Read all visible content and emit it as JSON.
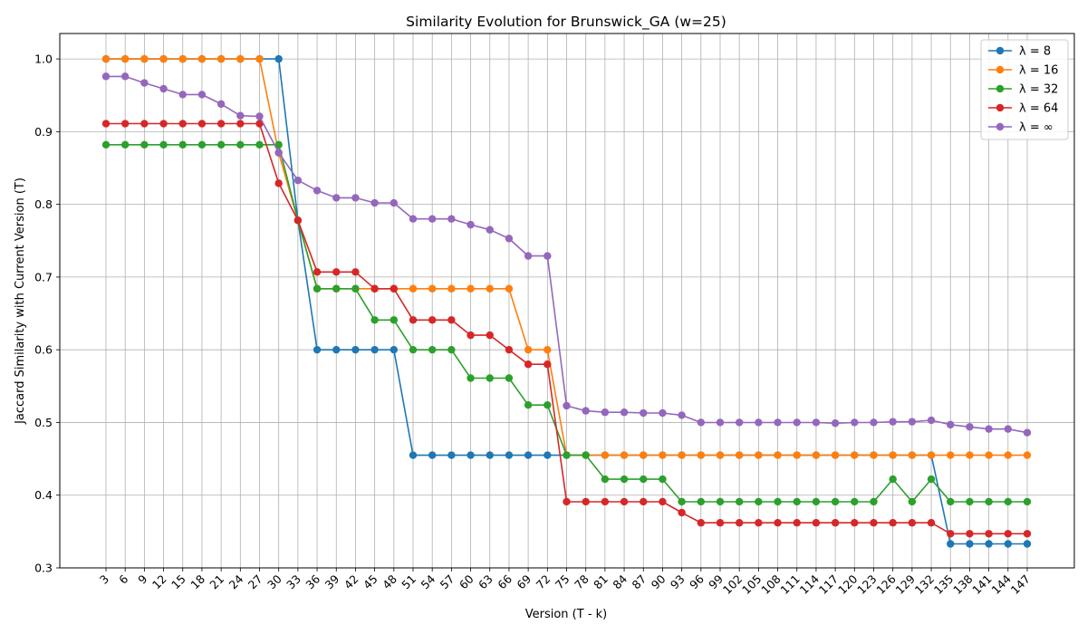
{
  "chart_data": {
    "type": "line",
    "title": "Similarity Evolution for Brunswick_GA (w=25)",
    "xlabel": "Version (T - k)",
    "ylabel": "Jaccard Similarity with Current Version (T)",
    "ylim": [
      0.3,
      1.0
    ],
    "yticks": [
      "0.3",
      "0.4",
      "0.5",
      "0.6",
      "0.7",
      "0.8",
      "0.9",
      "1.0"
    ],
    "grid": true,
    "legend_position": "top-right",
    "x": [
      3,
      6,
      9,
      12,
      15,
      18,
      21,
      24,
      27,
      30,
      33,
      36,
      39,
      42,
      45,
      48,
      51,
      54,
      57,
      60,
      63,
      66,
      69,
      72,
      75,
      78,
      81,
      84,
      87,
      90,
      93,
      96,
      99,
      102,
      105,
      108,
      111,
      114,
      117,
      120,
      123,
      126,
      129,
      132,
      135,
      138,
      141,
      144,
      147
    ],
    "series": [
      {
        "name": "λ = 8",
        "color": "#1f77b4",
        "values": [
          1.0,
          1.0,
          1.0,
          1.0,
          1.0,
          1.0,
          1.0,
          1.0,
          1.0,
          1.0,
          0.778,
          0.6,
          0.6,
          0.6,
          0.6,
          0.6,
          0.455,
          0.455,
          0.455,
          0.455,
          0.455,
          0.455,
          0.455,
          0.455,
          0.455,
          0.455,
          0.455,
          0.455,
          0.455,
          0.455,
          0.455,
          0.455,
          0.455,
          0.455,
          0.455,
          0.455,
          0.455,
          0.455,
          0.455,
          0.455,
          0.455,
          0.455,
          0.455,
          0.455,
          0.333,
          0.333,
          0.333,
          0.333,
          0.333
        ]
      },
      {
        "name": "λ = 16",
        "color": "#ff7f0e",
        "values": [
          1.0,
          1.0,
          1.0,
          1.0,
          1.0,
          1.0,
          1.0,
          1.0,
          1.0,
          0.871,
          0.778,
          0.684,
          0.684,
          0.684,
          0.684,
          0.684,
          0.684,
          0.684,
          0.684,
          0.684,
          0.684,
          0.684,
          0.6,
          0.6,
          0.455,
          0.455,
          0.455,
          0.455,
          0.455,
          0.455,
          0.455,
          0.455,
          0.455,
          0.455,
          0.455,
          0.455,
          0.455,
          0.455,
          0.455,
          0.455,
          0.455,
          0.455,
          0.455,
          0.455,
          0.455,
          0.455,
          0.455,
          0.455,
          0.455
        ]
      },
      {
        "name": "λ = 32",
        "color": "#2ca02c",
        "values": [
          0.882,
          0.882,
          0.882,
          0.882,
          0.882,
          0.882,
          0.882,
          0.882,
          0.882,
          0.882,
          0.778,
          0.684,
          0.684,
          0.684,
          0.641,
          0.641,
          0.6,
          0.6,
          0.6,
          0.561,
          0.561,
          0.561,
          0.524,
          0.524,
          0.455,
          0.455,
          0.422,
          0.422,
          0.422,
          0.422,
          0.391,
          0.391,
          0.391,
          0.391,
          0.391,
          0.391,
          0.391,
          0.391,
          0.391,
          0.391,
          0.391,
          0.422,
          0.391,
          0.422,
          0.391,
          0.391,
          0.391,
          0.391,
          0.391
        ]
      },
      {
        "name": "λ = 64",
        "color": "#d62728",
        "values": [
          0.911,
          0.911,
          0.911,
          0.911,
          0.911,
          0.911,
          0.911,
          0.911,
          0.911,
          0.829,
          0.778,
          0.707,
          0.707,
          0.707,
          0.684,
          0.684,
          0.641,
          0.641,
          0.641,
          0.62,
          0.62,
          0.6,
          0.58,
          0.58,
          0.391,
          0.391,
          0.391,
          0.391,
          0.391,
          0.391,
          0.376,
          0.362,
          0.362,
          0.362,
          0.362,
          0.362,
          0.362,
          0.362,
          0.362,
          0.362,
          0.362,
          0.362,
          0.362,
          0.362,
          0.347,
          0.347,
          0.347,
          0.347,
          0.347
        ]
      },
      {
        "name": "λ = ∞",
        "color": "#9467bd",
        "values": [
          0.976,
          0.976,
          0.967,
          0.959,
          0.951,
          0.951,
          0.938,
          0.922,
          0.921,
          0.871,
          0.833,
          0.819,
          0.809,
          0.809,
          0.802,
          0.802,
          0.78,
          0.78,
          0.78,
          0.772,
          0.765,
          0.753,
          0.729,
          0.729,
          0.523,
          0.516,
          0.514,
          0.514,
          0.513,
          0.513,
          0.51,
          0.5,
          0.5,
          0.5,
          0.5,
          0.5,
          0.5,
          0.5,
          0.499,
          0.5,
          0.5,
          0.501,
          0.501,
          0.503,
          0.497,
          0.494,
          0.491,
          0.491,
          0.486
        ]
      }
    ]
  }
}
